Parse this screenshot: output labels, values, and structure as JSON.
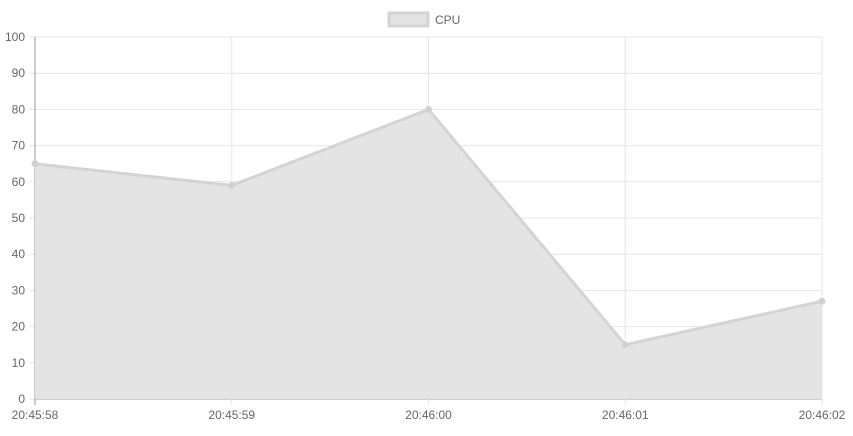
{
  "chart_data": {
    "type": "area",
    "categories": [
      "20:45:58",
      "20:45:59",
      "20:46:00",
      "20:46:01",
      "20:46:02"
    ],
    "series": [
      {
        "name": "CPU",
        "values": [
          65,
          59,
          80,
          15,
          27
        ]
      }
    ],
    "ylim": [
      0,
      100
    ],
    "y_ticks": [
      0,
      10,
      20,
      30,
      40,
      50,
      60,
      70,
      80,
      90,
      100
    ],
    "grid": true,
    "legend_position": "top",
    "colors": {
      "fill": "#e3e3e3",
      "line": "#d4d4d4",
      "point": "#cfcfcf",
      "grid": "#e6e6e6",
      "axis": "#999999",
      "tick_text": "#666666"
    }
  }
}
